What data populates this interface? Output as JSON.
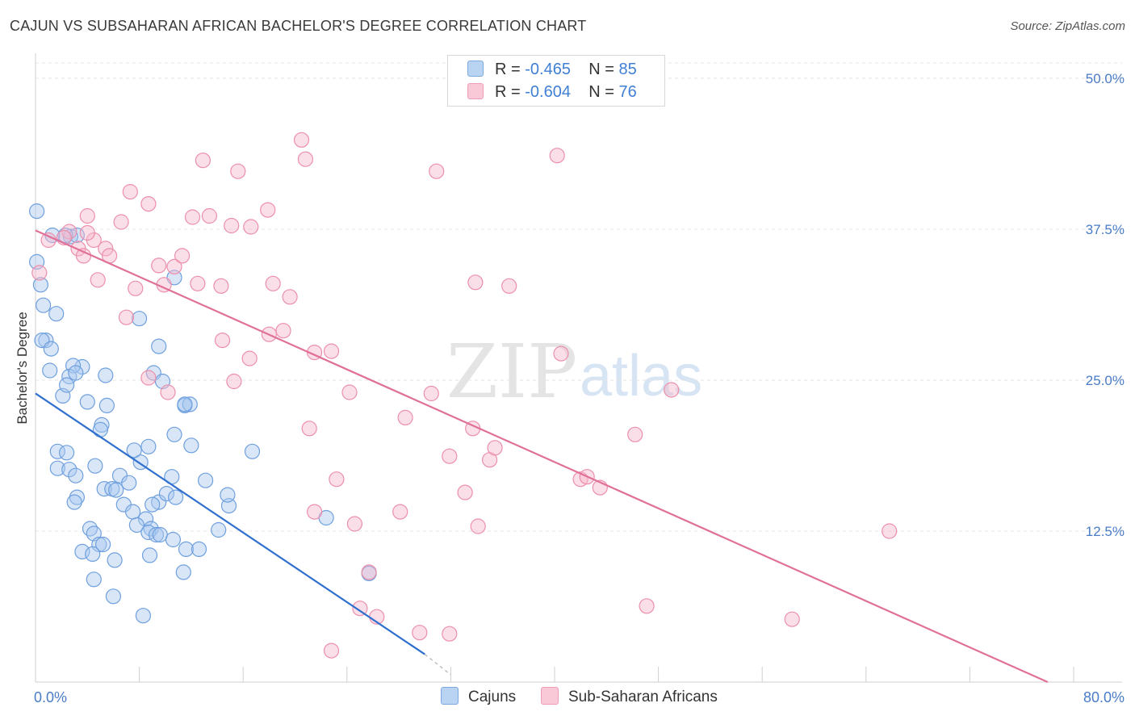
{
  "header": {
    "title": "CAJUN VS SUBSAHARAN AFRICAN BACHELOR'S DEGREE CORRELATION CHART",
    "source": "Source: ZipAtlas.com"
  },
  "watermark": {
    "zip": "ZIP",
    "atlas": "atlas"
  },
  "legend": {
    "rows": [
      {
        "r_label": "R =",
        "r_value": "-0.465",
        "n_label": "N =",
        "n_value": "85",
        "color": "#a9c8ef"
      },
      {
        "r_label": "R =",
        "r_value": "-0.604",
        "n_label": "N =",
        "n_value": "76",
        "color": "#f6b8cb"
      }
    ]
  },
  "bottom_legend": {
    "cajuns": "Cajuns",
    "subsaharan": "Sub-Saharan Africans"
  },
  "chart_data": {
    "type": "scatter",
    "title": "CAJUN VS SUBSAHARAN AFRICAN BACHELOR'S DEGREE CORRELATION CHART",
    "xlabel": "",
    "ylabel": "Bachelor's Degree",
    "xlim": [
      0,
      80
    ],
    "ylim": [
      0,
      50
    ],
    "x_tick_labels": [
      "0.0%",
      "80.0%"
    ],
    "y_ticks": [
      12.5,
      25.0,
      37.5,
      50.0
    ],
    "y_tick_labels": [
      "12.5%",
      "25.0%",
      "37.5%",
      "50.0%"
    ],
    "grid": true,
    "legend_position": "top-center",
    "series": [
      {
        "name": "Cajuns",
        "color": "#6fa0de",
        "fill": "#a9c8ef",
        "trend": {
          "x": [
            0,
            30
          ],
          "y": [
            23.9,
            2.3
          ],
          "dashed_to": [
            32,
            0.6
          ],
          "color": "#2f6fce"
        },
        "points": [
          [
            0.1,
            39.0
          ],
          [
            0.1,
            34.8
          ],
          [
            0.4,
            32.9
          ],
          [
            0.6,
            31.2
          ],
          [
            0.8,
            28.3
          ],
          [
            0.5,
            28.3
          ],
          [
            1.6,
            30.5
          ],
          [
            1.2,
            27.6
          ],
          [
            2.7,
            36.9
          ],
          [
            3.2,
            37.0
          ],
          [
            3.6,
            26.1
          ],
          [
            1.1,
            25.8
          ],
          [
            2.9,
            26.2
          ],
          [
            2.6,
            25.3
          ],
          [
            2.1,
            23.7
          ],
          [
            2.4,
            24.6
          ],
          [
            3.1,
            25.6
          ],
          [
            5.4,
            25.4
          ],
          [
            4.0,
            23.2
          ],
          [
            5.5,
            22.9
          ],
          [
            5.1,
            21.3
          ],
          [
            5.0,
            20.9
          ],
          [
            1.7,
            19.1
          ],
          [
            2.4,
            19.0
          ],
          [
            1.7,
            17.7
          ],
          [
            2.6,
            17.6
          ],
          [
            3.1,
            17.1
          ],
          [
            4.6,
            17.9
          ],
          [
            5.3,
            16.0
          ],
          [
            5.9,
            16.0
          ],
          [
            6.2,
            15.9
          ],
          [
            6.5,
            17.1
          ],
          [
            7.2,
            16.5
          ],
          [
            3.2,
            15.3
          ],
          [
            3.0,
            14.9
          ],
          [
            6.8,
            14.7
          ],
          [
            7.5,
            14.1
          ],
          [
            8.1,
            18.2
          ],
          [
            7.6,
            19.2
          ],
          [
            8.7,
            19.5
          ],
          [
            9.5,
            14.9
          ],
          [
            10.1,
            15.6
          ],
          [
            10.8,
            15.3
          ],
          [
            9.0,
            14.7
          ],
          [
            8.5,
            13.5
          ],
          [
            7.8,
            13.0
          ],
          [
            8.9,
            12.7
          ],
          [
            8.7,
            12.4
          ],
          [
            9.3,
            12.2
          ],
          [
            9.6,
            12.2
          ],
          [
            10.6,
            11.8
          ],
          [
            11.6,
            11.0
          ],
          [
            12.6,
            11.0
          ],
          [
            4.2,
            12.7
          ],
          [
            4.5,
            12.3
          ],
          [
            4.9,
            11.4
          ],
          [
            5.2,
            11.4
          ],
          [
            3.6,
            10.8
          ],
          [
            4.4,
            10.6
          ],
          [
            6.1,
            10.1
          ],
          [
            8.8,
            10.5
          ],
          [
            11.4,
            9.1
          ],
          [
            4.5,
            8.5
          ],
          [
            6.0,
            7.1
          ],
          [
            8.3,
            5.5
          ],
          [
            9.5,
            27.8
          ],
          [
            8.0,
            30.1
          ],
          [
            9.1,
            25.6
          ],
          [
            9.8,
            24.9
          ],
          [
            11.5,
            22.9
          ],
          [
            11.9,
            23.0
          ],
          [
            10.7,
            20.5
          ],
          [
            12.0,
            19.6
          ],
          [
            13.1,
            16.7
          ],
          [
            14.1,
            12.6
          ],
          [
            14.9,
            14.6
          ],
          [
            14.8,
            15.5
          ],
          [
            16.7,
            19.1
          ],
          [
            11.5,
            23.0
          ],
          [
            10.5,
            17.0
          ],
          [
            22.4,
            13.6
          ],
          [
            25.7,
            9.0
          ],
          [
            10.7,
            33.5
          ],
          [
            2.3,
            37.0
          ],
          [
            1.3,
            37.0
          ]
        ]
      },
      {
        "name": "Sub-Saharan Africans",
        "color": "#ec8faa",
        "fill": "#f6b8cb",
        "trend": {
          "x": [
            0,
            78
          ],
          "y": [
            37.4,
            0.0
          ],
          "color": "#e07098"
        },
        "points": [
          [
            0.3,
            33.9
          ],
          [
            1.0,
            36.6
          ],
          [
            2.6,
            37.3
          ],
          [
            4.0,
            38.6
          ],
          [
            4.5,
            36.6
          ],
          [
            3.3,
            35.9
          ],
          [
            3.7,
            35.3
          ],
          [
            5.4,
            35.9
          ],
          [
            5.7,
            35.3
          ],
          [
            4.8,
            33.3
          ],
          [
            7.0,
            30.2
          ],
          [
            6.6,
            38.1
          ],
          [
            7.3,
            40.6
          ],
          [
            8.7,
            39.6
          ],
          [
            7.7,
            32.6
          ],
          [
            9.5,
            34.5
          ],
          [
            9.9,
            32.9
          ],
          [
            10.7,
            34.4
          ],
          [
            11.3,
            35.3
          ],
          [
            12.1,
            38.5
          ],
          [
            12.5,
            33.0
          ],
          [
            12.9,
            43.2
          ],
          [
            13.4,
            38.6
          ],
          [
            14.3,
            32.8
          ],
          [
            15.1,
            37.8
          ],
          [
            15.6,
            42.3
          ],
          [
            16.6,
            37.7
          ],
          [
            17.9,
            39.1
          ],
          [
            18.3,
            33.0
          ],
          [
            18.0,
            28.8
          ],
          [
            16.5,
            26.8
          ],
          [
            19.6,
            31.9
          ],
          [
            19.1,
            29.1
          ],
          [
            20.5,
            44.9
          ],
          [
            20.8,
            43.3
          ],
          [
            14.4,
            28.3
          ],
          [
            15.3,
            24.9
          ],
          [
            21.5,
            27.3
          ],
          [
            22.8,
            27.4
          ],
          [
            24.2,
            24.0
          ],
          [
            21.1,
            21.0
          ],
          [
            21.5,
            14.1
          ],
          [
            23.2,
            16.8
          ],
          [
            24.6,
            13.1
          ],
          [
            25.0,
            6.1
          ],
          [
            25.7,
            9.1
          ],
          [
            26.3,
            5.4
          ],
          [
            28.1,
            14.1
          ],
          [
            28.5,
            21.9
          ],
          [
            29.6,
            4.1
          ],
          [
            30.5,
            23.9
          ],
          [
            31.9,
            18.7
          ],
          [
            31.9,
            4.0
          ],
          [
            33.1,
            15.7
          ],
          [
            33.7,
            21.0
          ],
          [
            34.1,
            12.9
          ],
          [
            35.0,
            18.4
          ],
          [
            35.4,
            19.4
          ],
          [
            33.9,
            33.1
          ],
          [
            36.5,
            32.8
          ],
          [
            30.9,
            42.3
          ],
          [
            40.2,
            43.6
          ],
          [
            40.5,
            27.2
          ],
          [
            42.0,
            16.8
          ],
          [
            42.5,
            17.0
          ],
          [
            43.5,
            16.1
          ],
          [
            46.2,
            20.5
          ],
          [
            47.1,
            6.3
          ],
          [
            49.0,
            24.2
          ],
          [
            58.3,
            5.2
          ],
          [
            65.8,
            12.5
          ],
          [
            22.8,
            2.6
          ],
          [
            10.2,
            24.0
          ],
          [
            8.7,
            25.2
          ],
          [
            2.2,
            36.8
          ],
          [
            4.0,
            37.2
          ]
        ]
      }
    ]
  }
}
